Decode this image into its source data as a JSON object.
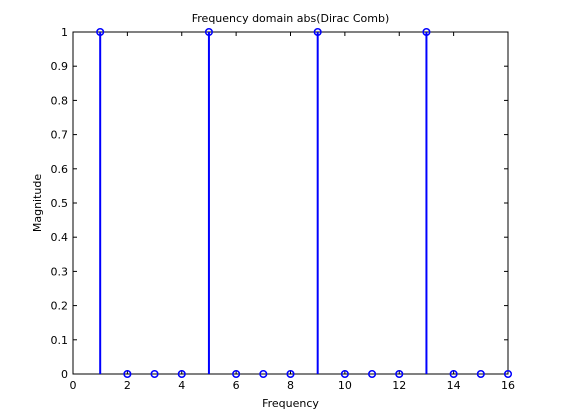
{
  "chart_data": {
    "type": "stem",
    "title": "Frequency domain abs(Dirac Comb)",
    "xlabel": "Frequency",
    "ylabel": "Magnitude",
    "xlim": [
      0,
      16
    ],
    "ylim": [
      0,
      1
    ],
    "xticks": [
      0,
      2,
      4,
      6,
      8,
      10,
      12,
      14,
      16
    ],
    "yticks": [
      0,
      0.1,
      0.2,
      0.3,
      0.4,
      0.5,
      0.6,
      0.7,
      0.8,
      0.9,
      1
    ],
    "grid": false,
    "x": [
      1,
      2,
      3,
      4,
      5,
      6,
      7,
      8,
      9,
      10,
      11,
      12,
      13,
      14,
      15,
      16
    ],
    "y": [
      1,
      0,
      0,
      0,
      1,
      0,
      0,
      0,
      1,
      0,
      0,
      0,
      1,
      0,
      0,
      0
    ],
    "color": "#0000ff"
  }
}
